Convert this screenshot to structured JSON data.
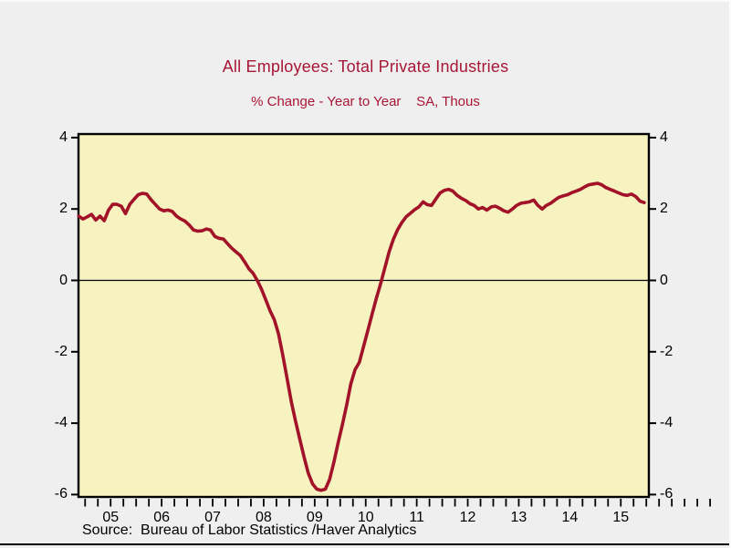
{
  "frame": {
    "background": "#efefef",
    "bottom_rule_color": "#000000"
  },
  "header": {
    "title": "All Employees: Total Private Industries",
    "subtitle": "% Change - Year to Year    SA, Thous",
    "title_color": "#a81636"
  },
  "source_line": "Source:  Bureau of Labor Statistics /Haver Analytics",
  "chart_data": {
    "type": "line",
    "title": "All Employees: Total Private Industries",
    "subtitle": "% Change - Year to Year  SA, Thous",
    "xlabel": "",
    "ylabel": "",
    "ylim": [
      -6,
      4
    ],
    "yticks": [
      4,
      2,
      0,
      -2,
      -4,
      -6
    ],
    "ytick_labels": [
      "4",
      "2",
      "0",
      "-2",
      "-4",
      "-6"
    ],
    "dual_y_axis": true,
    "xlim": [
      2004.87,
      2016.05
    ],
    "x_year_labels": [
      "05",
      "06",
      "07",
      "08",
      "09",
      "10",
      "11",
      "12",
      "13",
      "14",
      "15"
    ],
    "x_minor_tick_interval_years": 0.25,
    "zero_line": true,
    "grid": false,
    "legend": "none",
    "plot_bg": "#f7f3c1",
    "line_color": "#a21228",
    "axis_color": "#000000",
    "series": [
      {
        "name": "All Employees: Total Private Industries, % Change Year to Year, SA",
        "frequency": "monthly",
        "start": {
          "year": 2004,
          "month": 11
        },
        "end": {
          "year": 2015,
          "month": 12
        },
        "values": [
          1.8,
          1.72,
          1.78,
          1.85,
          1.69,
          1.8,
          1.67,
          1.97,
          2.13,
          2.13,
          2.08,
          1.87,
          2.13,
          2.27,
          2.4,
          2.44,
          2.42,
          2.26,
          2.13,
          2.0,
          1.95,
          1.97,
          1.93,
          1.8,
          1.72,
          1.66,
          1.55,
          1.41,
          1.38,
          1.39,
          1.44,
          1.41,
          1.23,
          1.18,
          1.16,
          1.03,
          0.9,
          0.8,
          0.7,
          0.52,
          0.33,
          0.2,
          0.0,
          -0.25,
          -0.55,
          -0.85,
          -1.1,
          -1.5,
          -2.1,
          -2.75,
          -3.4,
          -3.95,
          -4.45,
          -4.95,
          -5.4,
          -5.7,
          -5.85,
          -5.88,
          -5.85,
          -5.58,
          -5.1,
          -4.55,
          -4.05,
          -3.5,
          -2.9,
          -2.5,
          -2.3,
          -1.85,
          -1.4,
          -0.95,
          -0.5,
          -0.1,
          0.35,
          0.8,
          1.15,
          1.42,
          1.62,
          1.78,
          1.88,
          1.98,
          2.06,
          2.2,
          2.12,
          2.1,
          2.28,
          2.45,
          2.52,
          2.55,
          2.5,
          2.38,
          2.3,
          2.24,
          2.15,
          2.1,
          2.0,
          2.04,
          1.97,
          2.06,
          2.08,
          2.02,
          1.95,
          1.91,
          2.0,
          2.1,
          2.16,
          2.18,
          2.2,
          2.25,
          2.1,
          2.0,
          2.1,
          2.16,
          2.25,
          2.33,
          2.37,
          2.4,
          2.46,
          2.5,
          2.55,
          2.62,
          2.68,
          2.7,
          2.72,
          2.68,
          2.6,
          2.55,
          2.5,
          2.45,
          2.4,
          2.38,
          2.42,
          2.35,
          2.22,
          2.18
        ]
      }
    ]
  }
}
